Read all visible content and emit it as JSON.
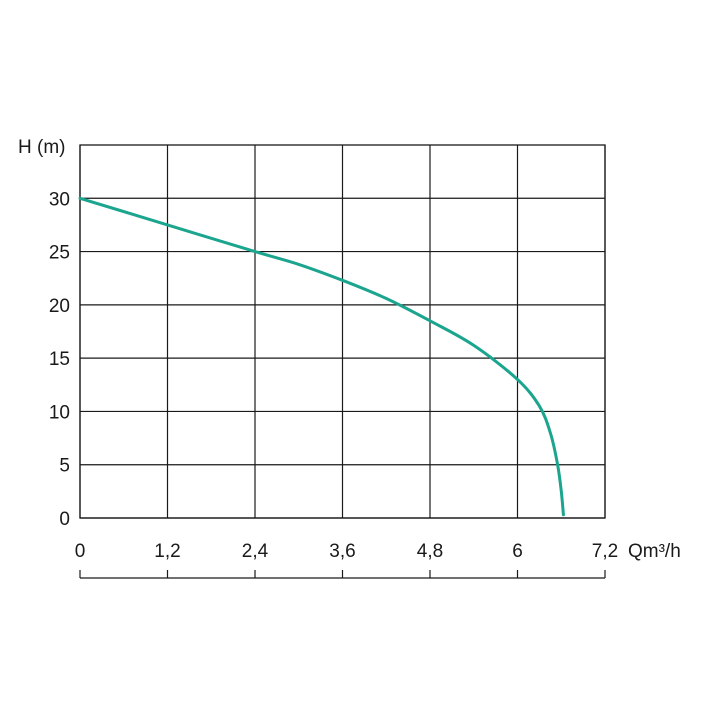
{
  "chart_data": {
    "type": "line",
    "ylabel": "H (m)",
    "xlabel": "Qm³/h",
    "x_ticks": [
      "0",
      "1,2",
      "2,4",
      "3,6",
      "4,8",
      "6",
      "7,2"
    ],
    "y_ticks": [
      "0",
      "5",
      "10",
      "15",
      "20",
      "25",
      "30"
    ],
    "xlim": [
      0,
      7.2
    ],
    "ylim": [
      0,
      35
    ],
    "grid": true,
    "line_color": "#1ba58e",
    "series": [
      {
        "x": [
          0,
          1.2,
          2.4,
          3.0,
          3.6,
          4.2,
          4.8,
          5.4,
          6.0,
          6.3,
          6.45,
          6.55,
          6.6,
          6.63
        ],
        "y": [
          30,
          27.5,
          25,
          23.8,
          22.3,
          20.6,
          18.5,
          16.2,
          13.0,
          10.5,
          8.0,
          5.0,
          2.5,
          0.3
        ]
      }
    ]
  }
}
